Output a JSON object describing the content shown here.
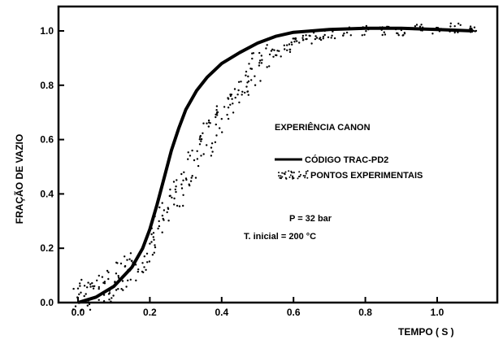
{
  "chart_data": {
    "type": "line",
    "title": "",
    "xlabel": "TEMPO ( S )",
    "ylabel": "FRAÇÃO DE VAZIO",
    "xlim": [
      -0.1,
      1.15
    ],
    "ylim": [
      0.0,
      1.08
    ],
    "x_ticks": [
      0.0,
      0.2,
      0.4,
      0.6,
      0.8,
      1.0
    ],
    "x_tick_labels": [
      "0.0",
      "0.2",
      "0.4",
      "0.6",
      "0.8",
      "1.0"
    ],
    "y_ticks": [
      0.0,
      0.2,
      0.4,
      0.6,
      0.8,
      1.0
    ],
    "y_tick_labels": [
      "0.0",
      "0.2",
      "0.4",
      "0.6",
      "0.8",
      "1.0"
    ],
    "grid": false,
    "legend_title": "EXPERIÊNCIA CANON",
    "legend_position": "right",
    "annotation_lines": [
      "P = 32 bar",
      "T. inicial = 200 °C"
    ],
    "series": [
      {
        "name": "CÓDIGO TRAC-PD2",
        "style": "line",
        "color": "#000000",
        "x": [
          0.0,
          0.05,
          0.1,
          0.15,
          0.18,
          0.2,
          0.22,
          0.24,
          0.26,
          0.28,
          0.3,
          0.33,
          0.36,
          0.4,
          0.45,
          0.5,
          0.55,
          0.6,
          0.65,
          0.7,
          0.8,
          0.9,
          1.0,
          1.1
        ],
        "y": [
          0.0,
          0.02,
          0.06,
          0.13,
          0.2,
          0.27,
          0.36,
          0.46,
          0.56,
          0.64,
          0.71,
          0.78,
          0.83,
          0.88,
          0.92,
          0.955,
          0.98,
          0.995,
          1.0,
          1.005,
          1.01,
          1.01,
          1.005,
          1.0
        ]
      },
      {
        "name": "PONTOS EXPERIMENTAIS",
        "style": "scatter",
        "color": "#000000",
        "x": [
          0.0,
          0.02,
          0.04,
          0.06,
          0.08,
          0.1,
          0.12,
          0.14,
          0.16,
          0.18,
          0.2,
          0.22,
          0.24,
          0.26,
          0.28,
          0.3,
          0.32,
          0.34,
          0.36,
          0.38,
          0.4,
          0.42,
          0.44,
          0.46,
          0.48,
          0.5,
          0.52,
          0.55,
          0.58,
          0.61,
          0.64,
          0.67,
          0.7,
          0.75,
          0.8,
          0.85,
          0.9,
          0.95,
          1.0,
          1.05,
          1.1
        ],
        "y": [
          0.02,
          0.03,
          0.04,
          0.05,
          0.06,
          0.07,
          0.09,
          0.11,
          0.13,
          0.17,
          0.21,
          0.26,
          0.31,
          0.36,
          0.41,
          0.46,
          0.51,
          0.56,
          0.6,
          0.64,
          0.68,
          0.72,
          0.76,
          0.8,
          0.83,
          0.86,
          0.89,
          0.92,
          0.94,
          0.96,
          0.97,
          0.98,
          0.99,
          0.995,
          1.0,
          1.0,
          1.0,
          1.01,
          1.0,
          1.01,
          1.0
        ]
      }
    ]
  }
}
